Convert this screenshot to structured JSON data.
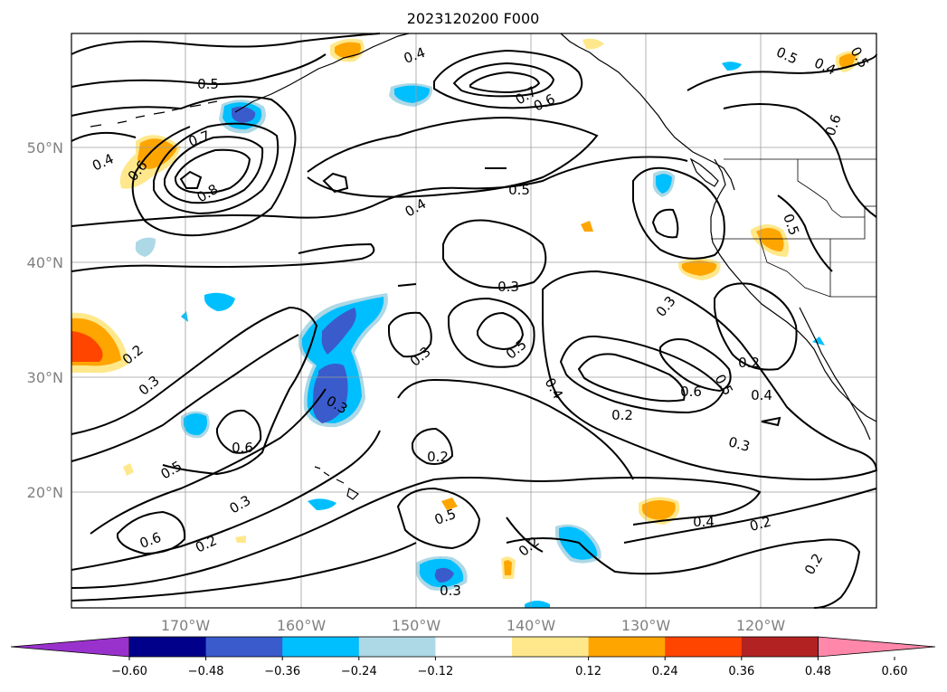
{
  "title": "2023120200 F000",
  "lat_labels": [
    "50°N",
    "40°N",
    "30°N",
    "20°N"
  ],
  "lon_labels": [
    "170°W",
    "160°W",
    "150°W",
    "140°W",
    "130°W",
    "120°W"
  ],
  "colorbar": {
    "tick_labels": [
      "−0.60",
      "−0.48",
      "−0.36",
      "−0.24",
      "−0.12",
      "0.12",
      "0.24",
      "0.36",
      "0.48",
      "0.60"
    ],
    "colors": [
      "#9932cc",
      "#00008b",
      "#3a5bcc",
      "#00bfff",
      "#add8e6",
      "#ffffff",
      "#ffe88c",
      "#ffa500",
      "#ff4500",
      "#b22222",
      "#ff88aa"
    ]
  },
  "contour_labels": [
    "0.5",
    "0.4",
    "0.7",
    "0.6",
    "0.5",
    "0.4",
    "0.5",
    "0.4",
    "0.6",
    "0.7",
    "0.8",
    "0.6",
    "0.4",
    "0.5",
    "0.5",
    "0.3",
    "0.3",
    "0.5",
    "0.2",
    "0.3",
    "0.3",
    "0.3",
    "0.4",
    "0.2",
    "0.6",
    "0.5",
    "0.2",
    "0.4",
    "0.6",
    "0.3",
    "0.2",
    "0.5",
    "0.6",
    "0.2",
    "0.2",
    "0.5",
    "0.3",
    "0.4",
    "0.2",
    "0.2",
    "0.3"
  ]
}
